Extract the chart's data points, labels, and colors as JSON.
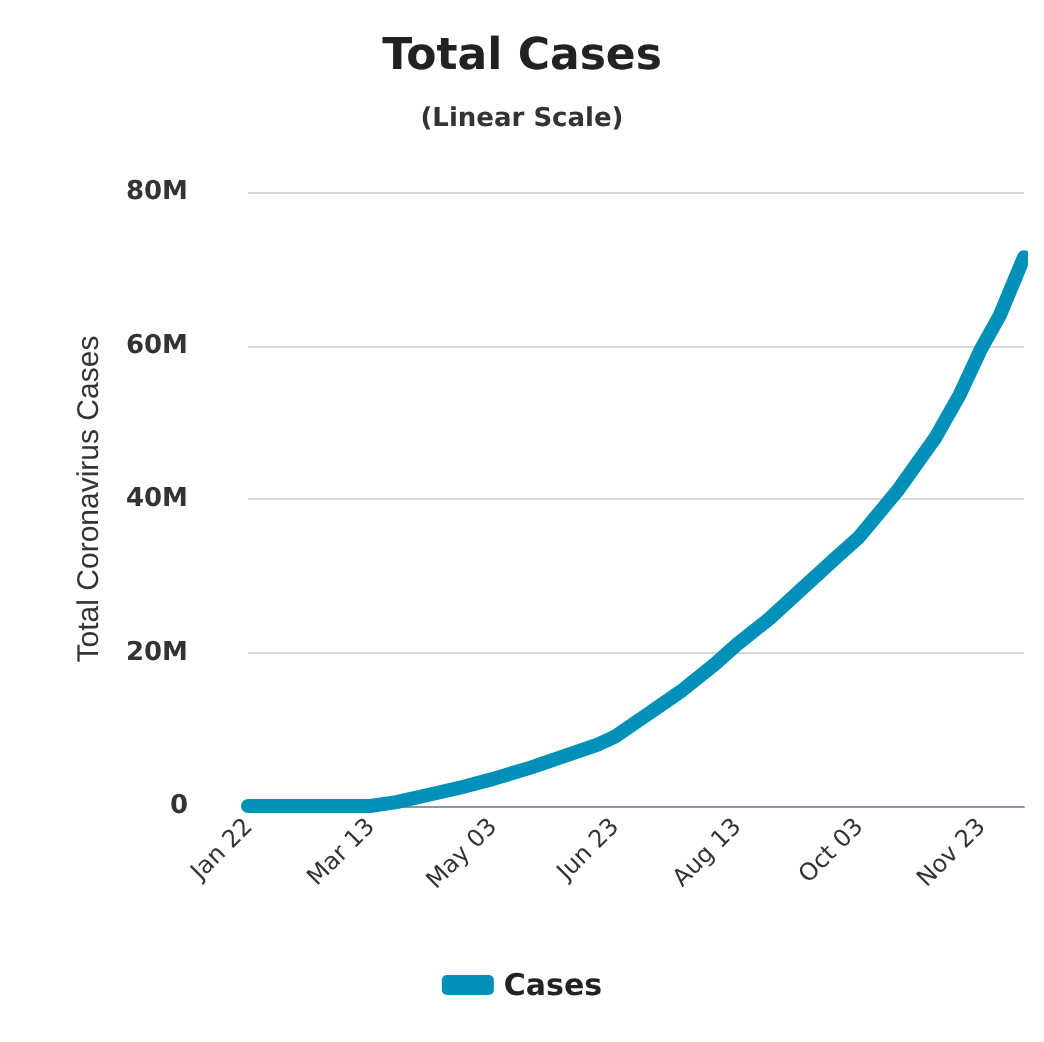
{
  "chart_data": {
    "type": "line",
    "title": "Total Cases",
    "subtitle": "(Linear Scale)",
    "ylabel": "Total Coronavirus Cases",
    "x": [
      "--01-22",
      "--02-05",
      "--02-19",
      "--03-04",
      "--03-13",
      "--03-24",
      "--04-07",
      "--04-21",
      "--05-03",
      "--05-19",
      "--06-02",
      "--06-16",
      "--06-23",
      "--07-07",
      "--07-21",
      "--08-04",
      "--08-13",
      "--08-27",
      "--09-10",
      "--09-24",
      "--10-03",
      "--10-19",
      "--11-04",
      "--11-14",
      "--11-23",
      "--12-01",
      "--12-11"
    ],
    "series": [
      {
        "name": "Cases",
        "color": "#0090b8",
        "values": [
          0,
          0,
          0,
          0,
          0,
          500000,
          1500000,
          2500000,
          3500000,
          5000000,
          6500000,
          8000000,
          9000000,
          12000000,
          15000000,
          18500000,
          21000000,
          24500000,
          28500000,
          32500000,
          35000000,
          41000000,
          48000000,
          53500000,
          59500000,
          64000000,
          71500000
        ]
      }
    ],
    "xlim": [
      "--01-22",
      "--12-11"
    ],
    "xticks": [
      {
        "value": "--01-22",
        "label": "Jan 22"
      },
      {
        "value": "--03-13",
        "label": "Mar 13"
      },
      {
        "value": "--05-03",
        "label": "May 03"
      },
      {
        "value": "--06-23",
        "label": "Jun 23"
      },
      {
        "value": "--08-13",
        "label": "Aug 13"
      },
      {
        "value": "--10-03",
        "label": "Oct 03"
      },
      {
        "value": "--11-23",
        "label": "Nov 23"
      }
    ],
    "ylim": [
      0,
      80000000
    ],
    "yticks": [
      {
        "value": 0,
        "label": "0"
      },
      {
        "value": 20000000,
        "label": "20M"
      },
      {
        "value": 40000000,
        "label": "40M"
      },
      {
        "value": 60000000,
        "label": "60M"
      },
      {
        "value": 80000000,
        "label": "80M"
      }
    ],
    "grid": "y",
    "legend": "bottom",
    "line_style": "solid"
  }
}
